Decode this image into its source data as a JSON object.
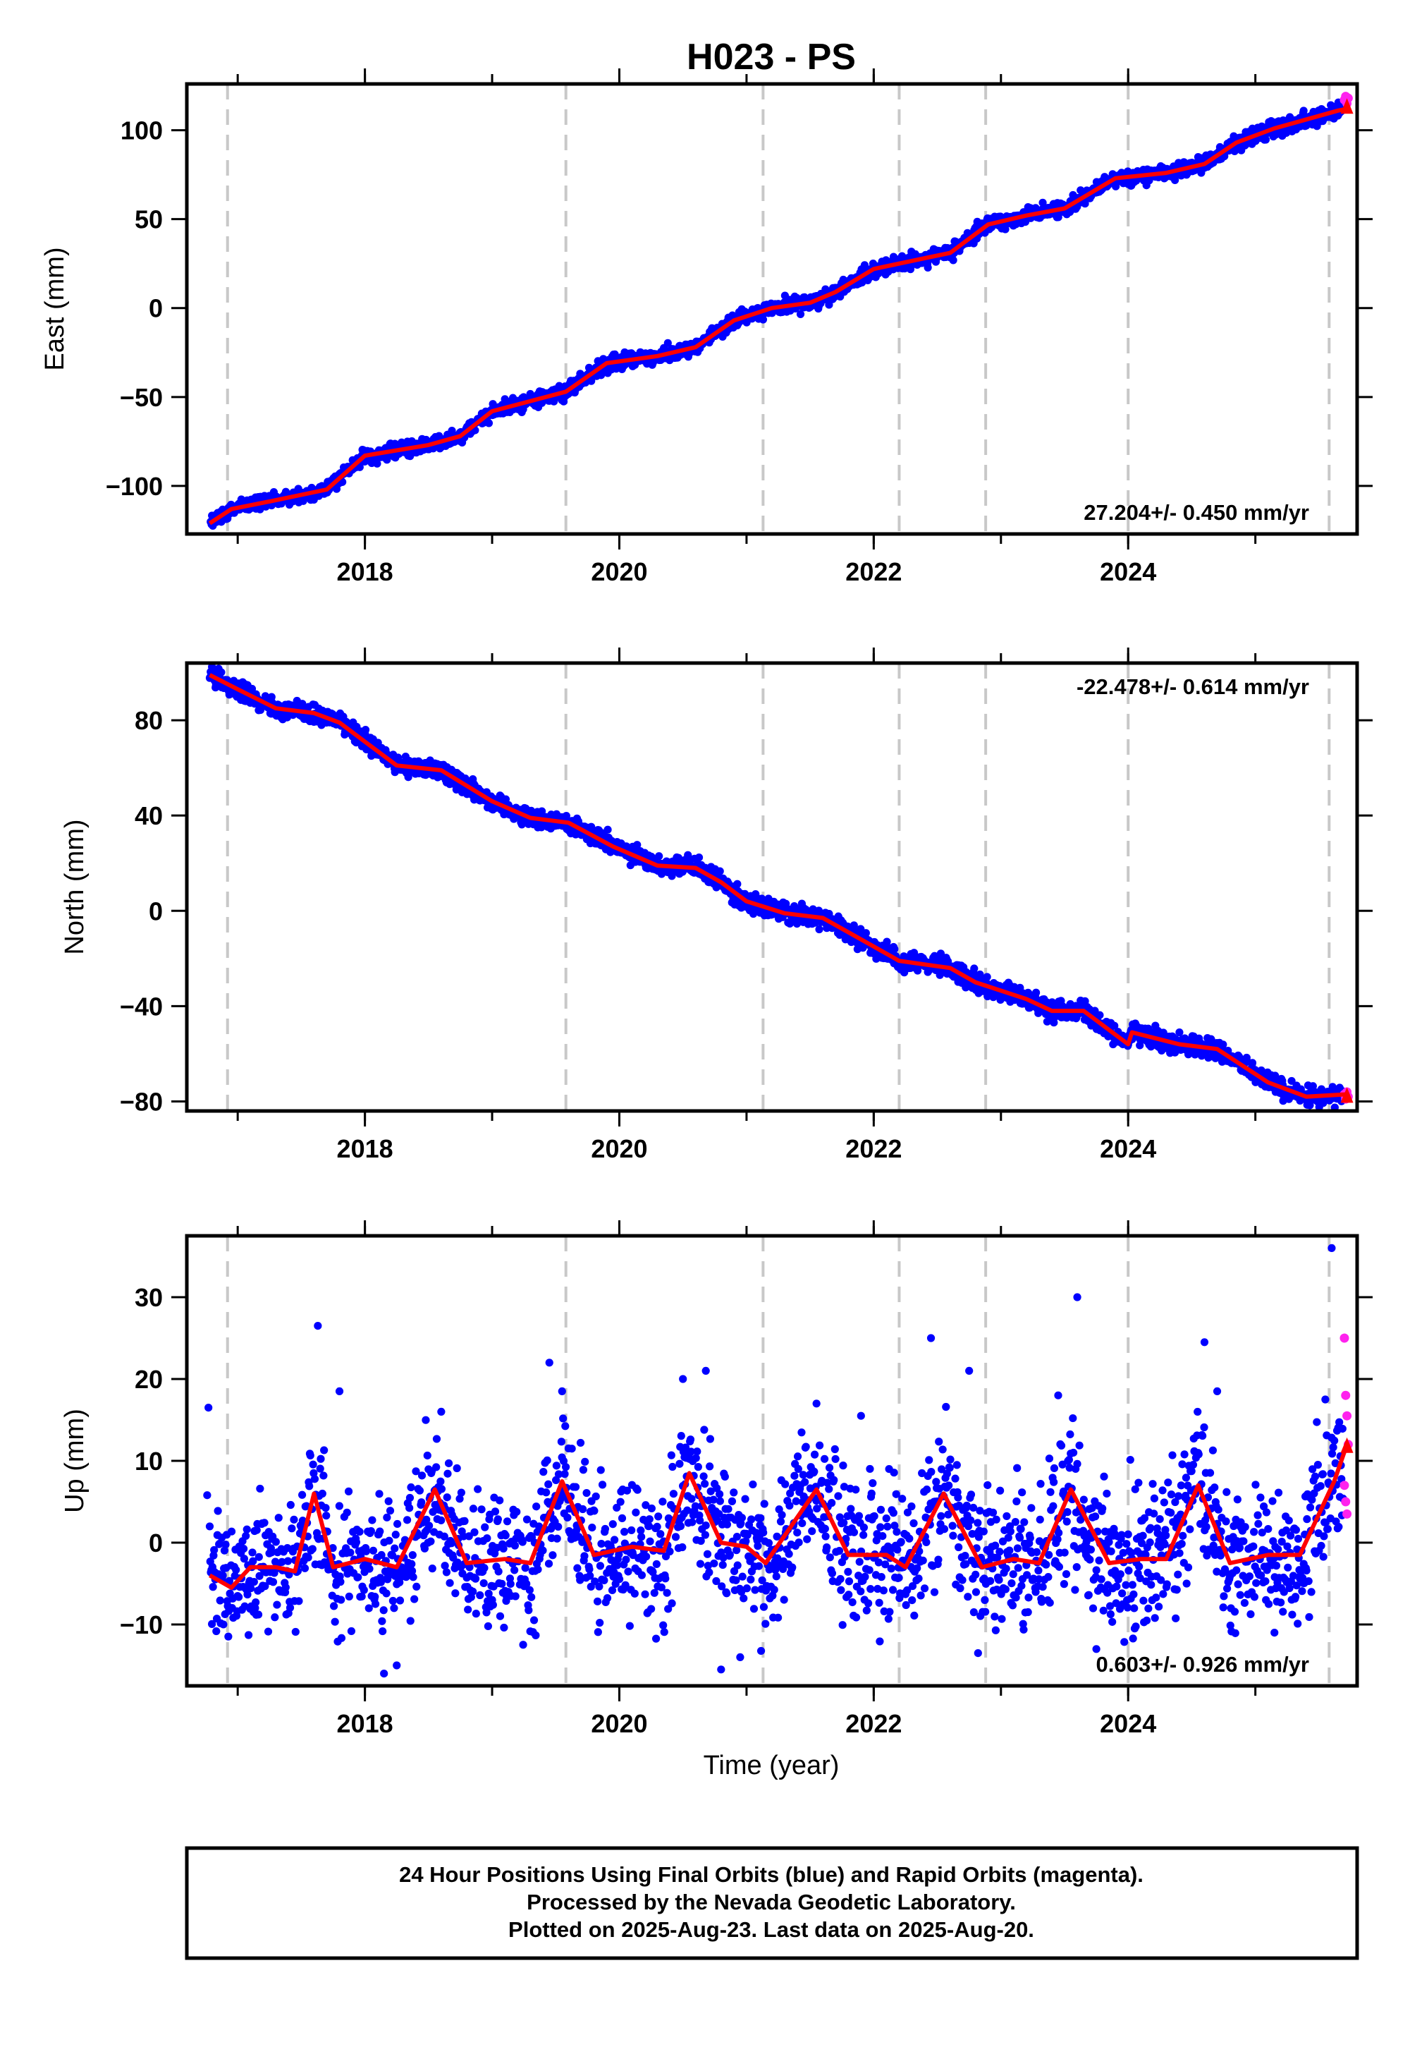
{
  "title": "H023 - PS",
  "colors": {
    "final": "#0000ff",
    "rapid": "#ff22ee",
    "model": "#ff0000",
    "break_line": "#c8c8c8"
  },
  "xlabel": "Time (year)",
  "x_ticks": [
    "2018",
    "2020",
    "2022",
    "2024"
  ],
  "footer": {
    "line1": "24 Hour Positions Using Final Orbits (blue) and Rapid Orbits (magenta).",
    "line2": "Processed by the Nevada Geodetic Laboratory.",
    "line3": "Plotted on 2025-Aug-23. Last data on 2025-Aug-20."
  },
  "chart_data": [
    {
      "type": "scatter",
      "ylabel": "East (mm)",
      "rate": "27.204+/- 0.450 mm/yr",
      "xlim": [
        2016.6,
        2025.8
      ],
      "ylim": [
        -127,
        126
      ],
      "yticks": [
        {
          "v": 100,
          "label": "100"
        },
        {
          "v": 50,
          "label": "50"
        },
        {
          "v": 0,
          "label": "0"
        },
        {
          "v": -50,
          "label": "−50"
        },
        {
          "v": -100,
          "label": "−100"
        }
      ],
      "breaks": [
        2016.92,
        2019.58,
        2021.13,
        2022.2,
        2022.88,
        2024.0,
        2025.58
      ],
      "model": [
        [
          2016.78,
          -121
        ],
        [
          2016.95,
          -113
        ],
        [
          2017.3,
          -108
        ],
        [
          2017.7,
          -102
        ],
        [
          2018.0,
          -83
        ],
        [
          2018.5,
          -77
        ],
        [
          2018.75,
          -72
        ],
        [
          2019.0,
          -58
        ],
        [
          2019.58,
          -47
        ],
        [
          2019.9,
          -31
        ],
        [
          2020.3,
          -27
        ],
        [
          2020.6,
          -22
        ],
        [
          2020.9,
          -7
        ],
        [
          2021.2,
          0
        ],
        [
          2021.5,
          3
        ],
        [
          2021.7,
          9
        ],
        [
          2022.0,
          22
        ],
        [
          2022.4,
          28
        ],
        [
          2022.6,
          31
        ],
        [
          2022.9,
          47
        ],
        [
          2023.2,
          52
        ],
        [
          2023.5,
          56
        ],
        [
          2023.9,
          73
        ],
        [
          2024.3,
          76
        ],
        [
          2024.6,
          81
        ],
        [
          2024.85,
          93
        ],
        [
          2025.15,
          101
        ],
        [
          2025.65,
          111
        ],
        [
          2025.72,
          112
        ]
      ],
      "noise": 2.0,
      "spikes": [],
      "rapid": [
        [
          2025.7,
          117
        ],
        [
          2025.71,
          119
        ],
        [
          2025.72,
          115
        ],
        [
          2025.73,
          118
        ]
      ],
      "rapid_end": [
        2025.72,
        114
      ]
    },
    {
      "type": "scatter",
      "ylabel": "North (mm)",
      "rate": "-22.478+/- 0.614 mm/yr",
      "xlim": [
        2016.6,
        2025.8
      ],
      "ylim": [
        -84,
        104
      ],
      "yticks": [
        {
          "v": 80,
          "label": "80"
        },
        {
          "v": 40,
          "label": "40"
        },
        {
          "v": 0,
          "label": "0"
        },
        {
          "v": -40,
          "label": "−40"
        },
        {
          "v": -80,
          "label": "−80"
        }
      ],
      "breaks": [
        2016.92,
        2019.58,
        2021.13,
        2022.2,
        2022.88,
        2024.0,
        2025.58
      ],
      "model": [
        [
          2016.78,
          99
        ],
        [
          2017.0,
          93
        ],
        [
          2017.3,
          85
        ],
        [
          2017.6,
          83
        ],
        [
          2017.8,
          79
        ],
        [
          2018.0,
          71
        ],
        [
          2018.25,
          61
        ],
        [
          2018.6,
          59
        ],
        [
          2019.0,
          46
        ],
        [
          2019.3,
          39
        ],
        [
          2019.6,
          37
        ],
        [
          2019.95,
          27
        ],
        [
          2020.3,
          19
        ],
        [
          2020.6,
          18
        ],
        [
          2020.8,
          12
        ],
        [
          2021.0,
          4
        ],
        [
          2021.3,
          -1
        ],
        [
          2021.6,
          -3
        ],
        [
          2021.9,
          -12
        ],
        [
          2022.2,
          -21
        ],
        [
          2022.6,
          -24
        ],
        [
          2022.8,
          -30
        ],
        [
          2023.2,
          -37
        ],
        [
          2023.4,
          -42
        ],
        [
          2023.65,
          -42
        ],
        [
          2024.0,
          -56
        ],
        [
          2024.03,
          -51
        ],
        [
          2024.4,
          -56
        ],
        [
          2024.7,
          -58
        ],
        [
          2025.1,
          -72
        ],
        [
          2025.4,
          -78
        ],
        [
          2025.72,
          -77
        ]
      ],
      "noise": 1.9,
      "spikes": [],
      "rapid": [
        [
          2025.7,
          -77
        ],
        [
          2025.71,
          -79
        ],
        [
          2025.72,
          -76
        ],
        [
          2025.73,
          -78
        ]
      ],
      "rapid_end": [
        2025.72,
        -77
      ]
    },
    {
      "type": "scatter",
      "ylabel": "Up (mm)",
      "rate": "0.603+/- 0.926 mm/yr",
      "xlim": [
        2016.6,
        2025.8
      ],
      "ylim": [
        -17.5,
        37.5
      ],
      "yticks": [
        {
          "v": 30,
          "label": "30"
        },
        {
          "v": 20,
          "label": "20"
        },
        {
          "v": 10,
          "label": "10"
        },
        {
          "v": 0,
          "label": "0"
        },
        {
          "v": -10,
          "label": "−10"
        }
      ],
      "breaks": [
        2016.92,
        2019.58,
        2021.13,
        2022.2,
        2022.88,
        2024.0,
        2025.58
      ],
      "model": [
        [
          2016.78,
          -4
        ],
        [
          2016.95,
          -5.5
        ],
        [
          2017.1,
          -3
        ],
        [
          2017.3,
          -3
        ],
        [
          2017.45,
          -3.5
        ],
        [
          2017.6,
          6
        ],
        [
          2017.75,
          -3
        ],
        [
          2018.0,
          -2
        ],
        [
          2018.25,
          -3
        ],
        [
          2018.55,
          6.5
        ],
        [
          2018.8,
          -2.5
        ],
        [
          2019.1,
          -2
        ],
        [
          2019.3,
          -2.5
        ],
        [
          2019.55,
          7.5
        ],
        [
          2019.8,
          -1.5
        ],
        [
          2020.1,
          -0.5
        ],
        [
          2020.35,
          -1
        ],
        [
          2020.55,
          8.5
        ],
        [
          2020.8,
          0
        ],
        [
          2021.0,
          -0.5
        ],
        [
          2021.15,
          -2.5
        ],
        [
          2021.55,
          6.5
        ],
        [
          2021.8,
          -1.5
        ],
        [
          2022.1,
          -1.5
        ],
        [
          2022.25,
          -3
        ],
        [
          2022.55,
          6
        ],
        [
          2022.85,
          -3
        ],
        [
          2023.1,
          -2
        ],
        [
          2023.3,
          -2.5
        ],
        [
          2023.55,
          6.5
        ],
        [
          2023.85,
          -2.5
        ],
        [
          2024.1,
          -2
        ],
        [
          2024.3,
          -2
        ],
        [
          2024.55,
          7
        ],
        [
          2024.8,
          -2.5
        ],
        [
          2025.1,
          -1.5
        ],
        [
          2025.35,
          -1.5
        ],
        [
          2025.62,
          7.5
        ],
        [
          2025.72,
          12
        ]
      ],
      "noise": 4.2,
      "spikes": [
        [
          2016.77,
          16.5
        ],
        [
          2016.76,
          5.8
        ],
        [
          2017.63,
          26.5
        ],
        [
          2017.8,
          18.5
        ],
        [
          2018.25,
          -15
        ],
        [
          2018.6,
          16
        ],
        [
          2019.45,
          22
        ],
        [
          2019.55,
          18.5
        ],
        [
          2020.5,
          20
        ],
        [
          2020.68,
          21
        ],
        [
          2020.8,
          -15.5
        ],
        [
          2021.55,
          17
        ],
        [
          2021.9,
          15.5
        ],
        [
          2022.45,
          25
        ],
        [
          2022.75,
          21
        ],
        [
          2022.82,
          -13.5
        ],
        [
          2023.45,
          18
        ],
        [
          2023.6,
          30
        ],
        [
          2023.75,
          -13
        ],
        [
          2024.6,
          24.5
        ],
        [
          2024.7,
          18.5
        ],
        [
          2025.15,
          -11
        ],
        [
          2025.6,
          36
        ],
        [
          2025.55,
          17.5
        ],
        [
          2018.15,
          -16
        ],
        [
          2019.0,
          -7
        ],
        [
          2020.95,
          -14
        ]
      ],
      "rapid": [
        [
          2025.7,
          25
        ],
        [
          2025.71,
          18
        ],
        [
          2025.72,
          15.5
        ],
        [
          2025.73,
          12
        ],
        [
          2025.7,
          7
        ],
        [
          2025.71,
          5
        ],
        [
          2025.72,
          3.5
        ]
      ],
      "rapid_end": [
        2025.72,
        12
      ]
    }
  ]
}
